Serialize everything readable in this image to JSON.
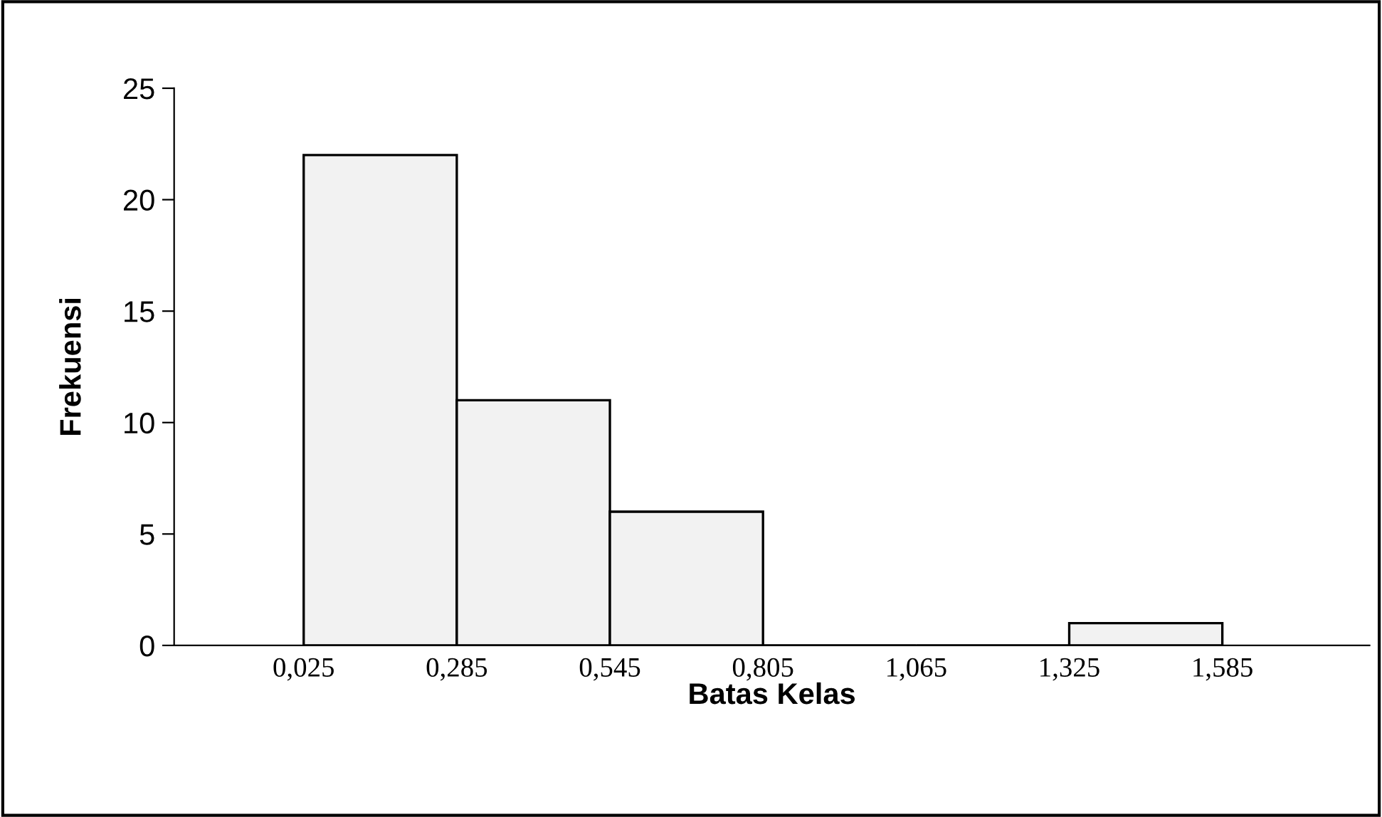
{
  "chart_data": {
    "type": "histogram",
    "xlabel": "Batas Kelas",
    "ylabel": "Frekuensi",
    "bins": [
      0.025,
      0.285,
      0.545,
      0.805,
      1.065,
      1.325,
      1.585
    ],
    "values": [
      22,
      11,
      6,
      0,
      0,
      1
    ],
    "color": "#f2f2f2",
    "xlim": [
      -0.195,
      1.835
    ],
    "xticks": [
      {
        "value": 0.025,
        "label": "0,025"
      },
      {
        "value": 0.285,
        "label": "0,285"
      },
      {
        "value": 0.545,
        "label": "0,545"
      },
      {
        "value": 0.805,
        "label": "0,805"
      },
      {
        "value": 1.065,
        "label": "1,065"
      },
      {
        "value": 1.325,
        "label": "1,325"
      },
      {
        "value": 1.585,
        "label": "1,585"
      }
    ],
    "ylim": [
      0,
      25
    ],
    "yticks": [
      0,
      5,
      10,
      15,
      20,
      25
    ],
    "grid": false,
    "legend": false
  }
}
